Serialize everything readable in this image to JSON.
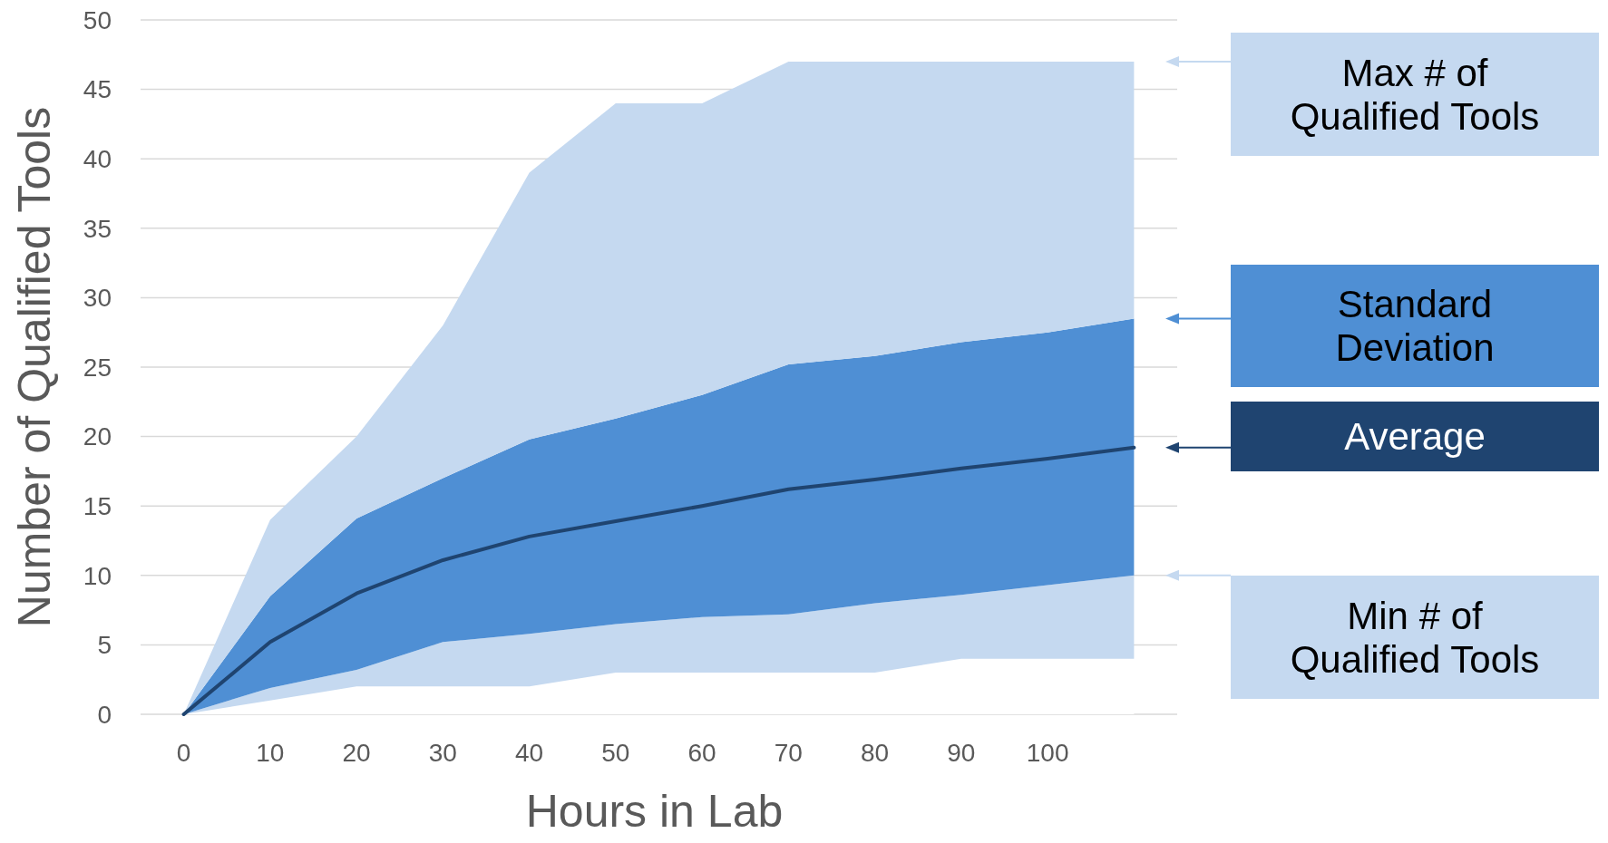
{
  "chart_data": {
    "type": "area",
    "stacked": true,
    "xlabel": "Hours in Lab",
    "ylabel": "Number of Qualified Tools",
    "categories": [
      "0",
      "10",
      "20",
      "30",
      "40",
      "50",
      "60",
      "70",
      "80",
      "90",
      "100",
      null
    ],
    "ylim": [
      0,
      50
    ],
    "yticks": [
      0,
      5,
      10,
      15,
      20,
      25,
      30,
      35,
      40,
      45,
      50
    ],
    "grid": "y",
    "legend": "right",
    "series": [
      {
        "color": "#ffffff",
        "values": [
          0,
          1,
          2,
          2,
          2,
          3,
          3,
          3,
          3,
          4,
          4,
          4
        ]
      },
      {
        "name": "Min # of Qualified Tools",
        "color": "#c5d9f0",
        "values": [
          0,
          0.9,
          1.2,
          3.2,
          3.8,
          3.5,
          4,
          4.2,
          5,
          4.6,
          5.3,
          6
        ]
      },
      {
        "name": "Standard Deviation",
        "color": "#4f8fd4",
        "values": [
          0,
          6.6,
          10.9,
          11.8,
          14,
          14.8,
          16,
          18,
          17.8,
          18.2,
          18.2,
          18.5
        ]
      },
      {
        "name": "Max # of Qualified Tools",
        "color": "#c5d9f0",
        "values": [
          0,
          5.5,
          5.9,
          11,
          19.2,
          22.7,
          21,
          21.8,
          21.2,
          20.2,
          19.5,
          18.5
        ]
      },
      {
        "name": "Average",
        "type": "line",
        "color": "#1f4470",
        "values": [
          0,
          5.2,
          8.7,
          11.1,
          12.8,
          13.9,
          15,
          16.2,
          16.9,
          17.7,
          18.4,
          19.2
        ]
      }
    ]
  }
}
